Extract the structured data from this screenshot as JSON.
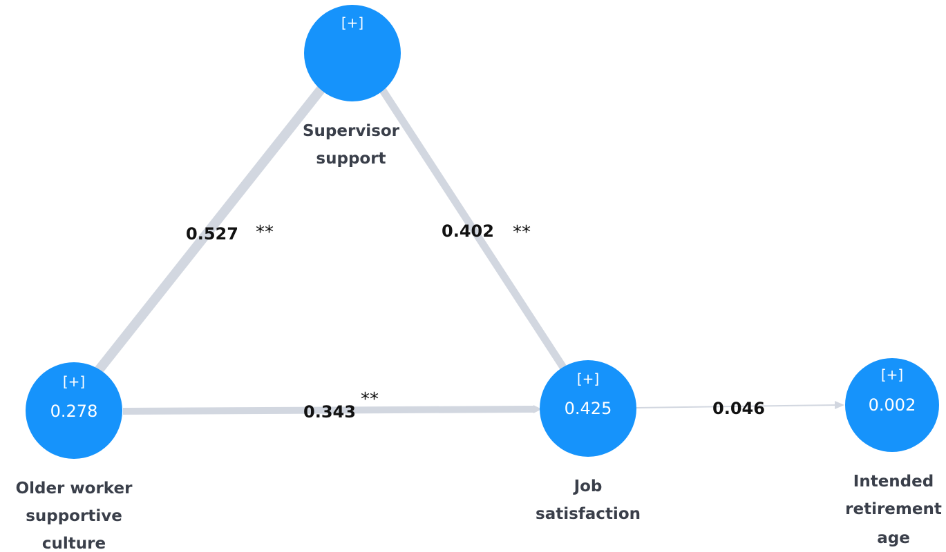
{
  "nodes": [
    {
      "expand": "[+]",
      "label": [
        "Supervisor",
        "support"
      ]
    },
    {
      "expand": "[+]",
      "value": "0.278",
      "label": [
        "Older worker",
        "supportive",
        "culture"
      ]
    },
    {
      "expand": "[+]",
      "value": "0.425",
      "label": [
        "Job",
        "satisfaction"
      ]
    },
    {
      "expand": "[+]",
      "value": "0.002",
      "label": [
        "Intended",
        "retirement",
        "age"
      ]
    }
  ],
  "edges": [
    {
      "from": "Older worker supportive culture",
      "to": "Supervisor support",
      "coefficient": "0.527",
      "significance": "**"
    },
    {
      "from": "Supervisor support",
      "to": "Job satisfaction",
      "coefficient": "0.402",
      "significance": "**"
    },
    {
      "from": "Older worker supportive culture",
      "to": "Job satisfaction",
      "coefficient": "0.343",
      "significance": "**"
    },
    {
      "from": "Job satisfaction",
      "to": "Intended retirement age",
      "coefficient": "0.046"
    }
  ]
}
